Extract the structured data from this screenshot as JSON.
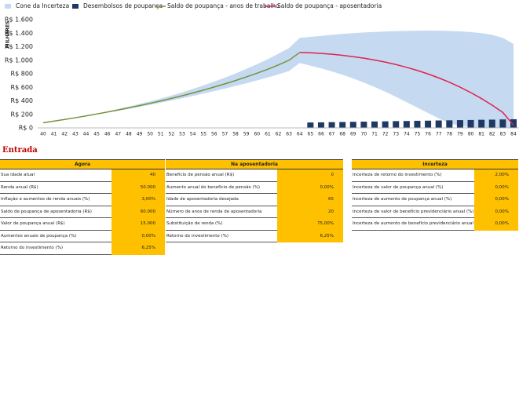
{
  "chart_data": {
    "type": "line",
    "y_axis_label": "MILHARES",
    "x": [
      40,
      41,
      42,
      43,
      44,
      45,
      46,
      47,
      48,
      49,
      50,
      51,
      52,
      53,
      54,
      55,
      56,
      57,
      58,
      59,
      60,
      61,
      62,
      63,
      64,
      65,
      66,
      67,
      68,
      69,
      70,
      71,
      72,
      73,
      74,
      75,
      76,
      77,
      78,
      79,
      80,
      81,
      82,
      83,
      84
    ],
    "xlim": [
      39.5,
      84.5
    ],
    "ylim": [
      0,
      1600
    ],
    "yticks": [
      {
        "value": 0,
        "label": "R$ 0"
      },
      {
        "value": 200,
        "label": "R$ 200"
      },
      {
        "value": 400,
        "label": "R$ 400"
      },
      {
        "value": 600,
        "label": "R$ 600"
      },
      {
        "value": 800,
        "label": "R$ 800"
      },
      {
        "value": 1000,
        "label": "R$ 1.000"
      },
      {
        "value": 1200,
        "label": "R$ 1.200"
      },
      {
        "value": 1400,
        "label": "R$ 1.400"
      },
      {
        "value": 1600,
        "label": "R$ 1.600"
      }
    ],
    "grid": false,
    "legend": "top",
    "series": [
      {
        "name": "Cone da Incerteza",
        "type": "band",
        "color": "#c5d9f1",
        "low": [
          75,
          99,
          124,
          147,
          173,
          199,
          226,
          253,
          282,
          311,
          341,
          373,
          405,
          438,
          472,
          507,
          543,
          581,
          620,
          660,
          702,
          745,
          790,
          840,
          960,
          920,
          880,
          835,
          785,
          730,
          670,
          605,
          535,
          460,
          380,
          300,
          220,
          140,
          70,
          30,
          10,
          0,
          0,
          0,
          0
        ],
        "high": [
          75,
          101,
          127,
          154,
          183,
          213,
          245,
          279,
          315,
          353,
          392,
          434,
          478,
          525,
          575,
          628,
          684,
          743,
          805,
          871,
          941,
          1015,
          1095,
          1180,
          1330,
          1345,
          1360,
          1375,
          1390,
          1400,
          1410,
          1418,
          1425,
          1430,
          1434,
          1436,
          1437,
          1436,
          1432,
          1426,
          1416,
          1400,
          1375,
          1330,
          1240
        ]
      },
      {
        "name": "Desembolsos de poupança",
        "type": "bar",
        "color": "#1f3864",
        "values": [
          null,
          null,
          null,
          null,
          null,
          null,
          null,
          null,
          null,
          null,
          null,
          null,
          null,
          null,
          null,
          null,
          null,
          null,
          null,
          null,
          null,
          null,
          null,
          null,
          null,
          80,
          82,
          85,
          87,
          90,
          92,
          95,
          97,
          100,
          102,
          105,
          107,
          110,
          112,
          115,
          117,
          120,
          122,
          125,
          128
        ]
      },
      {
        "name": "Saldo de poupança - anos de trabalho",
        "type": "line",
        "color": "#76923c",
        "values": [
          75,
          100,
          125,
          150,
          177,
          205,
          234,
          264,
          296,
          329,
          363,
          399,
          436,
          475,
          516,
          559,
          604,
          651,
          700,
          753,
          808,
          866,
          930,
          1000,
          1115,
          null,
          null,
          null,
          null,
          null,
          null,
          null,
          null,
          null,
          null,
          null,
          null,
          null,
          null,
          null,
          null,
          null,
          null,
          null,
          null
        ]
      },
      {
        "name": "Saldo de poupança - aposentadoria",
        "type": "line",
        "color": "#e0234e",
        "values": [
          null,
          null,
          null,
          null,
          null,
          null,
          null,
          null,
          null,
          null,
          null,
          null,
          null,
          null,
          null,
          null,
          null,
          null,
          null,
          null,
          null,
          null,
          null,
          null,
          1115,
          1110,
          1100,
          1088,
          1072,
          1052,
          1030,
          1003,
          972,
          936,
          895,
          849,
          797,
          739,
          674,
          602,
          522,
          434,
          336,
          228,
          40
        ]
      }
    ]
  },
  "input": {
    "title": "Entrada",
    "groups": [
      {
        "header": "Agora",
        "rows": [
          [
            "Sua idade atual",
            "40"
          ],
          [
            "Renda anual (R$)",
            "50.000"
          ],
          [
            "Inflação e aumentos de renda anuais (%)",
            "3,00%"
          ],
          [
            "Saldo de poupança de aposentadoria (R$)",
            "60.000"
          ],
          [
            "Valor de poupança anual (R$)",
            "15.000"
          ],
          [
            "Aumentos anuais de poupança (%)",
            "0,00%"
          ],
          [
            "Retorno do investimento (%)",
            "6,25%"
          ]
        ]
      },
      {
        "header": "Na aposentadoria",
        "rows": [
          [
            "Benefício de pensão anual (R$)",
            "0"
          ],
          [
            "Aumento anual do benefício de pensão (%)",
            "0,00%"
          ],
          [
            "Idade de aposentadoria desejada",
            "65"
          ],
          [
            "Número de anos de renda de aposentadoria",
            "20"
          ],
          [
            "Substituição de renda (%)",
            "75,00%"
          ],
          [
            "Retorno do investimento (%)",
            "6,25%"
          ]
        ]
      },
      {
        "header": "Incerteza",
        "rows": [
          [
            "Incerteza de retorno do investimento (%)",
            "2,00%"
          ],
          [
            "Incerteza de valor de poupança anual (%)",
            "0,00%"
          ],
          [
            "Incerteza de aumento de poupança anual (%)",
            "0,00%"
          ],
          [
            "Incerteza de valor de benefício previdenciário anual (%)",
            "0,00%"
          ],
          [
            "Incerteza de aumento de benefício previdenciário anual (%)",
            "0,00%"
          ]
        ]
      }
    ]
  }
}
